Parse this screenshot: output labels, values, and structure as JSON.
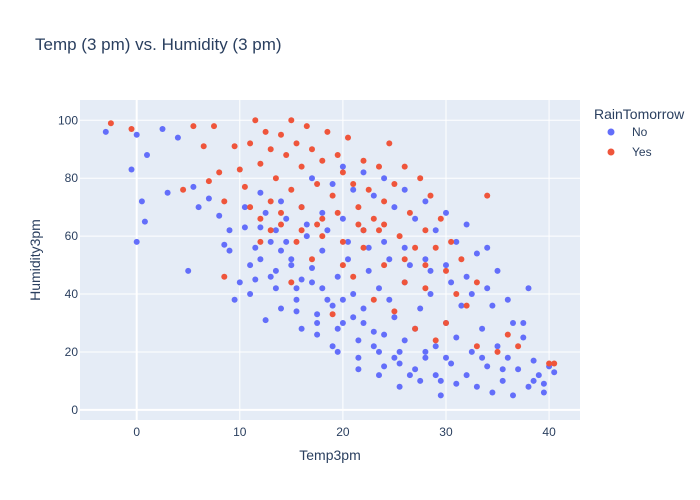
{
  "chart_data": {
    "type": "scatter",
    "title": "Temp (3 pm) vs. Humidity (3 pm)",
    "xlabel": "Temp3pm",
    "ylabel": "Humidity3pm",
    "xlim": [
      -5.5,
      43
    ],
    "ylim": [
      -3.5,
      107
    ],
    "x_ticks": [
      0,
      10,
      20,
      30,
      40
    ],
    "y_ticks": [
      0,
      20,
      40,
      60,
      80,
      100
    ],
    "grid": true,
    "legend": {
      "title": "RainTomorrow",
      "position": "top-right",
      "entries": [
        "No",
        "Yes"
      ]
    },
    "series": [
      {
        "name": "No",
        "color": "#636efa",
        "points": [
          [
            -3.0,
            96
          ],
          [
            0.0,
            95
          ],
          [
            -0.5,
            83
          ],
          [
            0.5,
            72
          ],
          [
            1.0,
            88
          ],
          [
            0.8,
            65
          ],
          [
            0.0,
            58
          ],
          [
            2.5,
            97
          ],
          [
            4.0,
            94
          ],
          [
            3.0,
            75
          ],
          [
            5.5,
            77
          ],
          [
            5.0,
            48
          ],
          [
            6.0,
            70
          ],
          [
            7.0,
            73
          ],
          [
            8.0,
            67
          ],
          [
            8.5,
            57
          ],
          [
            9.0,
            62
          ],
          [
            9.5,
            38
          ],
          [
            10.0,
            44
          ],
          [
            10.5,
            63
          ],
          [
            11.0,
            40
          ],
          [
            11.5,
            56
          ],
          [
            12.0,
            52
          ],
          [
            12.5,
            31
          ],
          [
            13.0,
            46
          ],
          [
            13.5,
            62
          ],
          [
            14.0,
            35
          ],
          [
            14.5,
            58
          ],
          [
            15.0,
            52
          ],
          [
            15.5,
            42
          ],
          [
            16.0,
            28
          ],
          [
            16.5,
            60
          ],
          [
            17.0,
            49
          ],
          [
            17.5,
            33
          ],
          [
            18.0,
            55
          ],
          [
            18.5,
            38
          ],
          [
            19.0,
            22
          ],
          [
            19.5,
            46
          ],
          [
            20.0,
            30
          ],
          [
            20.5,
            52
          ],
          [
            21.0,
            40
          ],
          [
            21.5,
            18
          ],
          [
            22.0,
            35
          ],
          [
            22.5,
            48
          ],
          [
            23.0,
            27
          ],
          [
            23.5,
            42
          ],
          [
            24.0,
            15
          ],
          [
            24.5,
            38
          ],
          [
            25.0,
            32
          ],
          [
            25.5,
            20
          ],
          [
            26.0,
            44
          ],
          [
            26.5,
            12
          ],
          [
            27.0,
            28
          ],
          [
            27.5,
            35
          ],
          [
            28.0,
            18
          ],
          [
            28.5,
            40
          ],
          [
            29.0,
            22
          ],
          [
            29.5,
            10
          ],
          [
            30.0,
            30
          ],
          [
            30.5,
            16
          ],
          [
            31.0,
            25
          ],
          [
            31.5,
            36
          ],
          [
            32.0,
            12
          ],
          [
            32.5,
            20
          ],
          [
            33.0,
            8
          ],
          [
            33.5,
            28
          ],
          [
            34.0,
            15
          ],
          [
            34.5,
            6
          ],
          [
            35.0,
            22
          ],
          [
            35.5,
            10
          ],
          [
            36.0,
            18
          ],
          [
            36.5,
            5
          ],
          [
            37.0,
            14
          ],
          [
            37.5,
            25
          ],
          [
            38.0,
            8
          ],
          [
            38.5,
            17
          ],
          [
            39.0,
            12
          ],
          [
            39.5,
            6
          ],
          [
            40.0,
            15
          ],
          [
            40.5,
            13
          ],
          [
            12.0,
            63
          ],
          [
            14.0,
            55
          ],
          [
            16.0,
            45
          ],
          [
            18.0,
            42
          ],
          [
            20.0,
            38
          ],
          [
            22.0,
            30
          ],
          [
            24.0,
            26
          ],
          [
            26.0,
            24
          ],
          [
            28.0,
            20
          ],
          [
            30.0,
            18
          ],
          [
            13.0,
            58
          ],
          [
            15.0,
            50
          ],
          [
            17.0,
            44
          ],
          [
            19.0,
            36
          ],
          [
            21.0,
            32
          ],
          [
            23.0,
            22
          ],
          [
            25.0,
            18
          ],
          [
            27.0,
            14
          ],
          [
            29.0,
            12
          ],
          [
            31.0,
            9
          ],
          [
            11.0,
            50
          ],
          [
            13.5,
            48
          ],
          [
            15.5,
            38
          ],
          [
            17.5,
            30
          ],
          [
            19.5,
            28
          ],
          [
            21.5,
            24
          ],
          [
            23.5,
            20
          ],
          [
            25.5,
            16
          ],
          [
            27.5,
            10
          ],
          [
            33.5,
            18
          ],
          [
            10.5,
            70
          ],
          [
            12.5,
            68
          ],
          [
            14.5,
            66
          ],
          [
            16.5,
            64
          ],
          [
            18.5,
            62
          ],
          [
            20.5,
            58
          ],
          [
            22.5,
            56
          ],
          [
            24.5,
            52
          ],
          [
            26.5,
            50
          ],
          [
            28.5,
            48
          ],
          [
            30.5,
            44
          ],
          [
            32.5,
            40
          ],
          [
            34.5,
            36
          ],
          [
            36.5,
            30
          ],
          [
            12.0,
            75
          ],
          [
            14.0,
            72
          ],
          [
            16.0,
            70
          ],
          [
            18.0,
            68
          ],
          [
            20.0,
            66
          ],
          [
            22.0,
            62
          ],
          [
            24.0,
            58
          ],
          [
            26.0,
            56
          ],
          [
            28.0,
            52
          ],
          [
            30.0,
            50
          ],
          [
            32.0,
            46
          ],
          [
            34.0,
            42
          ],
          [
            36.0,
            38
          ],
          [
            38.0,
            42
          ],
          [
            17.0,
            80
          ],
          [
            19.0,
            78
          ],
          [
            21.0,
            76
          ],
          [
            23.0,
            74
          ],
          [
            25.0,
            70
          ],
          [
            27.0,
            66
          ],
          [
            29.0,
            62
          ],
          [
            31.0,
            58
          ],
          [
            33.0,
            54
          ],
          [
            35.0,
            48
          ],
          [
            20.0,
            84
          ],
          [
            22.0,
            82
          ],
          [
            24.0,
            80
          ],
          [
            26.0,
            76
          ],
          [
            28.0,
            72
          ],
          [
            30.0,
            68
          ],
          [
            32.0,
            64
          ],
          [
            34.0,
            56
          ],
          [
            9.0,
            55
          ],
          [
            11.5,
            45
          ],
          [
            13.5,
            42
          ],
          [
            15.5,
            34
          ],
          [
            17.5,
            26
          ],
          [
            19.5,
            20
          ],
          [
            21.5,
            14
          ],
          [
            23.5,
            12
          ],
          [
            25.5,
            8
          ],
          [
            29.5,
            5
          ],
          [
            37.5,
            30
          ],
          [
            38.5,
            10
          ],
          [
            39.5,
            9
          ],
          [
            35.5,
            14
          ]
        ]
      },
      {
        "name": "Yes",
        "color": "#ef553b",
        "points": [
          [
            -2.5,
            99
          ],
          [
            -0.5,
            97
          ],
          [
            4.5,
            76
          ],
          [
            5.5,
            98
          ],
          [
            6.5,
            91
          ],
          [
            7.0,
            79
          ],
          [
            7.5,
            98
          ],
          [
            8.0,
            82
          ],
          [
            8.5,
            72
          ],
          [
            8.5,
            46
          ],
          [
            9.5,
            91
          ],
          [
            10.0,
            83
          ],
          [
            10.5,
            77
          ],
          [
            11.0,
            92
          ],
          [
            11.0,
            70
          ],
          [
            11.5,
            100
          ],
          [
            12.0,
            85
          ],
          [
            12.0,
            66
          ],
          [
            12.5,
            96
          ],
          [
            13.0,
            90
          ],
          [
            13.0,
            72
          ],
          [
            13.5,
            80
          ],
          [
            14.0,
            95
          ],
          [
            14.0,
            68
          ],
          [
            14.5,
            88
          ],
          [
            15.0,
            100
          ],
          [
            15.0,
            76
          ],
          [
            15.5,
            92
          ],
          [
            16.0,
            84
          ],
          [
            16.0,
            62
          ],
          [
            16.5,
            98
          ],
          [
            17.0,
            90
          ],
          [
            17.5,
            78
          ],
          [
            18.0,
            86
          ],
          [
            18.0,
            60
          ],
          [
            18.5,
            96
          ],
          [
            19.0,
            74
          ],
          [
            19.5,
            88
          ],
          [
            20.0,
            82
          ],
          [
            20.0,
            58
          ],
          [
            20.5,
            94
          ],
          [
            21.0,
            78
          ],
          [
            21.5,
            70
          ],
          [
            22.0,
            86
          ],
          [
            22.0,
            56
          ],
          [
            22.5,
            76
          ],
          [
            23.0,
            66
          ],
          [
            23.5,
            84
          ],
          [
            24.0,
            72
          ],
          [
            24.0,
            50
          ],
          [
            24.5,
            92
          ],
          [
            25.0,
            78
          ],
          [
            25.5,
            60
          ],
          [
            26.0,
            84
          ],
          [
            26.0,
            52
          ],
          [
            26.5,
            68
          ],
          [
            27.0,
            56
          ],
          [
            27.5,
            80
          ],
          [
            28.0,
            62
          ],
          [
            28.0,
            42
          ],
          [
            28.5,
            74
          ],
          [
            29.0,
            56
          ],
          [
            29.5,
            66
          ],
          [
            30.0,
            48
          ],
          [
            30.5,
            58
          ],
          [
            31.0,
            40
          ],
          [
            31.5,
            52
          ],
          [
            32.0,
            36
          ],
          [
            33.0,
            44
          ],
          [
            34.0,
            74
          ],
          [
            12.0,
            58
          ],
          [
            14.0,
            64
          ],
          [
            16.0,
            70
          ],
          [
            18.0,
            66
          ],
          [
            20.0,
            50
          ],
          [
            22.0,
            62
          ],
          [
            24.0,
            64
          ],
          [
            26.0,
            44
          ],
          [
            28.0,
            50
          ],
          [
            30.0,
            30
          ],
          [
            15.0,
            44
          ],
          [
            17.0,
            52
          ],
          [
            19.0,
            33
          ],
          [
            21.0,
            46
          ],
          [
            23.0,
            38
          ],
          [
            25.0,
            34
          ],
          [
            27.0,
            28
          ],
          [
            29.0,
            24
          ],
          [
            33.0,
            22
          ],
          [
            35.0,
            20
          ],
          [
            40.0,
            16
          ],
          [
            40.5,
            16
          ],
          [
            37.0,
            22
          ],
          [
            36.0,
            26
          ],
          [
            13.0,
            62
          ],
          [
            15.5,
            58
          ],
          [
            17.5,
            64
          ],
          [
            19.5,
            68
          ],
          [
            21.5,
            64
          ],
          [
            23.5,
            62
          ]
        ]
      }
    ]
  }
}
